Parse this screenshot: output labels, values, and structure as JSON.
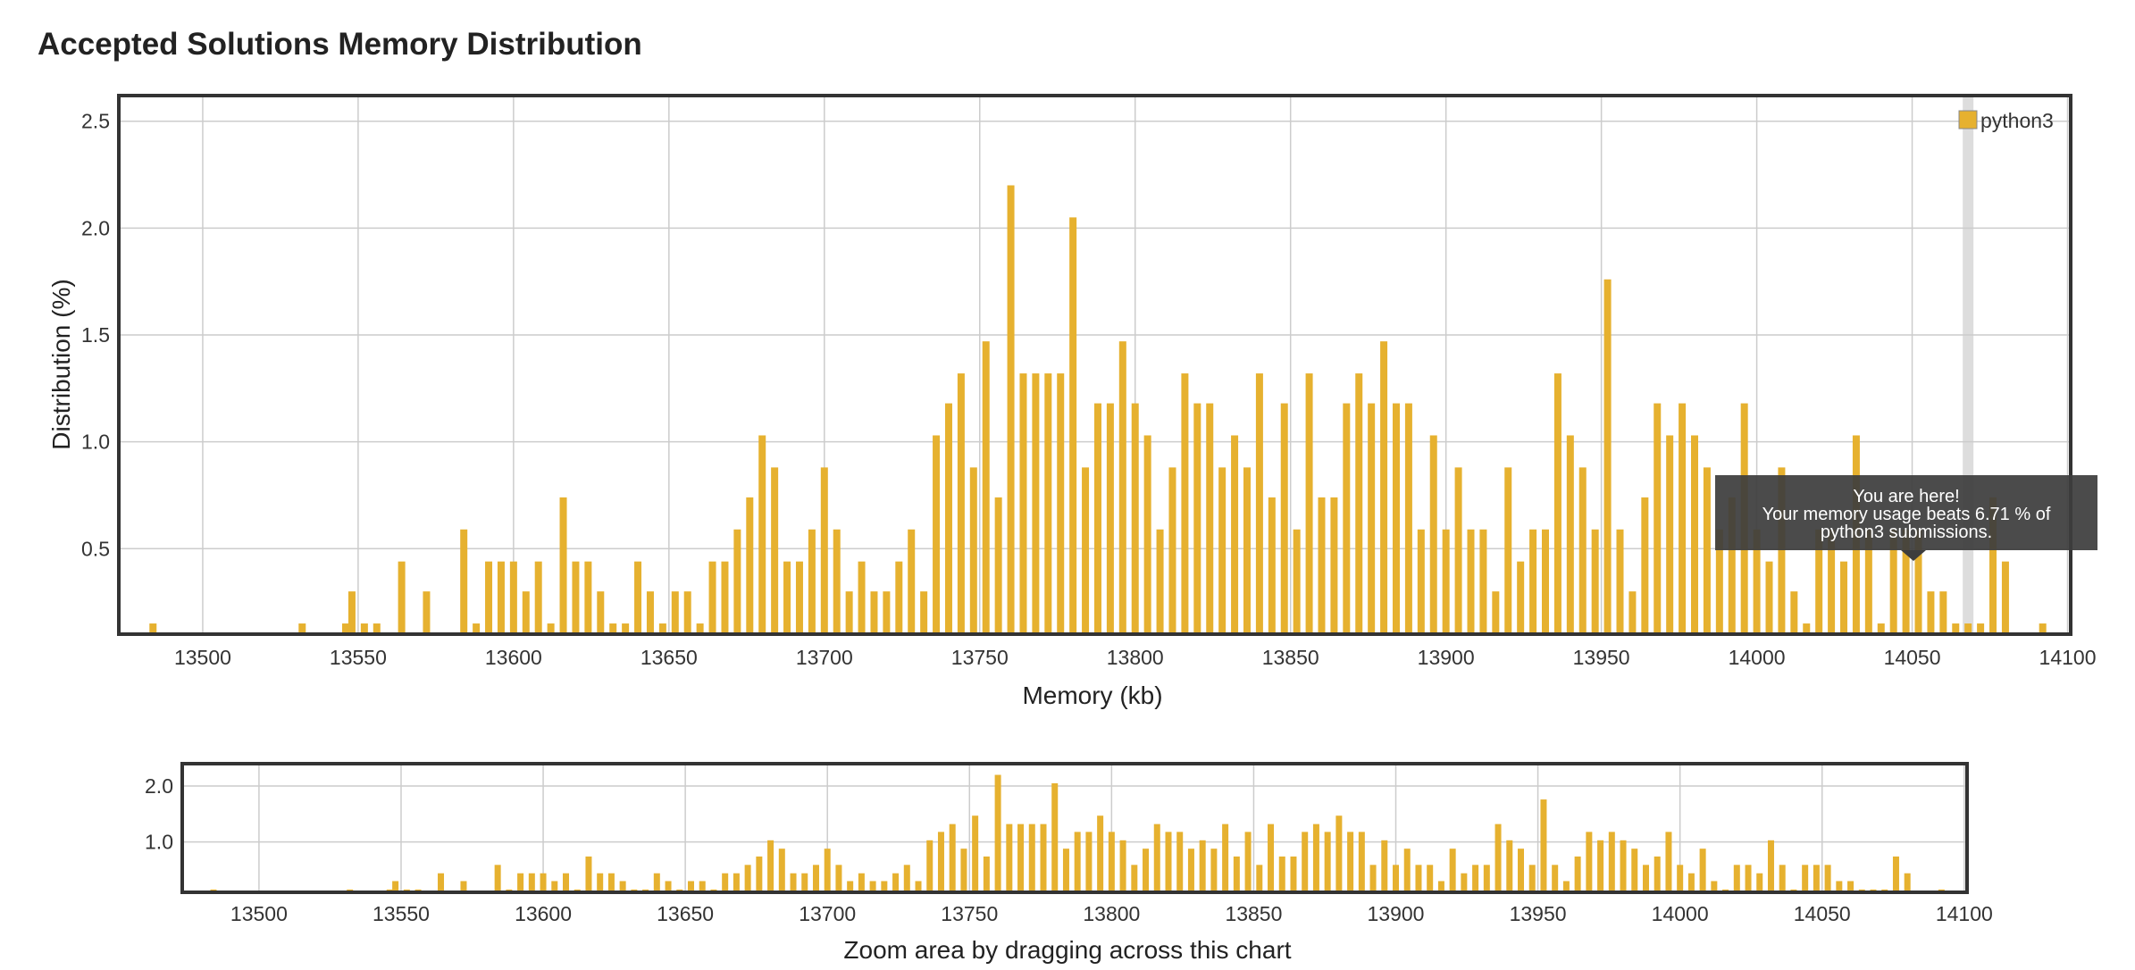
{
  "page_title": "Accepted Solutions Memory Distribution",
  "colors": {
    "bar": "#e6b12f",
    "grid": "#cccccc",
    "frame": "#333333",
    "highlight": "#dddddd",
    "tooltip_bg": "#3d3d3d"
  },
  "chart_data": [
    {
      "type": "bar",
      "title": "Accepted Solutions Memory Distribution",
      "xlabel": "Memory (kb)",
      "ylabel": "Distribution (%)",
      "xlim": [
        13473,
        14101
      ],
      "ylim": [
        0.1,
        2.62
      ],
      "xticks": [
        "13500",
        "13550",
        "13600",
        "13650",
        "13700",
        "13750",
        "13800",
        "13850",
        "13900",
        "13950",
        "14000",
        "14050",
        "14100"
      ],
      "yticks": [
        "0.5",
        "1.0",
        "1.5",
        "2.0",
        "2.5"
      ],
      "grid": true,
      "legend_position": "top-right",
      "series": [
        {
          "name": "python3",
          "x": [
            13484,
            13532,
            13546,
            13548,
            13552,
            13556,
            13564,
            13572,
            13584,
            13588,
            13592,
            13596,
            13600,
            13604,
            13608,
            13612,
            13616,
            13620,
            13624,
            13628,
            13632,
            13636,
            13640,
            13644,
            13648,
            13652,
            13656,
            13660,
            13664,
            13668,
            13672,
            13676,
            13680,
            13684,
            13688,
            13692,
            13696,
            13700,
            13704,
            13708,
            13712,
            13716,
            13720,
            13724,
            13728,
            13732,
            13736,
            13740,
            13744,
            13748,
            13752,
            13756,
            13760,
            13764,
            13768,
            13772,
            13776,
            13780,
            13784,
            13788,
            13792,
            13796,
            13800,
            13804,
            13808,
            13812,
            13816,
            13820,
            13824,
            13828,
            13832,
            13836,
            13840,
            13844,
            13848,
            13852,
            13856,
            13860,
            13864,
            13868,
            13872,
            13876,
            13880,
            13884,
            13888,
            13892,
            13896,
            13900,
            13904,
            13908,
            13912,
            13916,
            13920,
            13924,
            13928,
            13932,
            13936,
            13940,
            13944,
            13948,
            13952,
            13956,
            13960,
            13964,
            13968,
            13972,
            13976,
            13980,
            13984,
            13988,
            13992,
            13996,
            14000,
            14004,
            14008,
            14012,
            14016,
            14020,
            14024,
            14028,
            14032,
            14036,
            14040,
            14044,
            14048,
            14052,
            14056,
            14060,
            14064,
            14068,
            14072,
            14076,
            14080,
            14092
          ],
          "values": [
            0.15,
            0.15,
            0.15,
            0.3,
            0.15,
            0.15,
            0.44,
            0.3,
            0.59,
            0.15,
            0.44,
            0.44,
            0.44,
            0.3,
            0.44,
            0.15,
            0.74,
            0.44,
            0.44,
            0.3,
            0.15,
            0.15,
            0.44,
            0.3,
            0.15,
            0.3,
            0.3,
            0.15,
            0.44,
            0.44,
            0.59,
            0.74,
            1.03,
            0.88,
            0.44,
            0.44,
            0.59,
            0.88,
            0.59,
            0.3,
            0.44,
            0.3,
            0.3,
            0.44,
            0.59,
            0.3,
            1.03,
            1.18,
            1.32,
            0.88,
            1.47,
            0.74,
            2.2,
            1.32,
            1.32,
            1.32,
            1.32,
            2.05,
            0.88,
            1.18,
            1.18,
            1.47,
            1.18,
            1.03,
            0.59,
            0.88,
            1.32,
            1.18,
            1.18,
            0.88,
            1.03,
            0.88,
            1.32,
            0.74,
            1.18,
            0.59,
            1.32,
            0.74,
            0.74,
            1.18,
            1.32,
            1.18,
            1.47,
            1.18,
            1.18,
            0.59,
            1.03,
            0.59,
            0.88,
            0.59,
            0.59,
            0.3,
            0.88,
            0.44,
            0.59,
            0.59,
            1.32,
            1.03,
            0.88,
            0.59,
            1.76,
            0.59,
            0.3,
            0.74,
            1.18,
            1.03,
            1.18,
            1.03,
            0.88,
            0.59,
            0.74,
            1.18,
            0.59,
            0.44,
            0.88,
            0.3,
            0.15,
            0.59,
            0.59,
            0.44,
            1.03,
            0.59,
            0.15,
            0.59,
            0.59,
            0.59,
            0.3,
            0.3,
            0.15,
            0.15,
            0.15,
            0.74,
            0.44,
            0.15
          ]
        }
      ],
      "highlight_x": 14068,
      "tooltip": {
        "line1": "You are here!",
        "line2": "Your memory usage beats 6.71 % of",
        "line3": "python3 submissions."
      }
    },
    {
      "type": "bar",
      "role": "navigator",
      "xlim": [
        13473,
        14101
      ],
      "ylim": [
        0.1,
        2.4
      ],
      "xticks": [
        "13500",
        "13550",
        "13600",
        "13650",
        "13700",
        "13750",
        "13800",
        "13850",
        "13900",
        "13950",
        "14000",
        "14050",
        "14100"
      ],
      "yticks": [
        "1.0",
        "2.0"
      ],
      "caption": "Zoom area by dragging across this chart"
    }
  ]
}
